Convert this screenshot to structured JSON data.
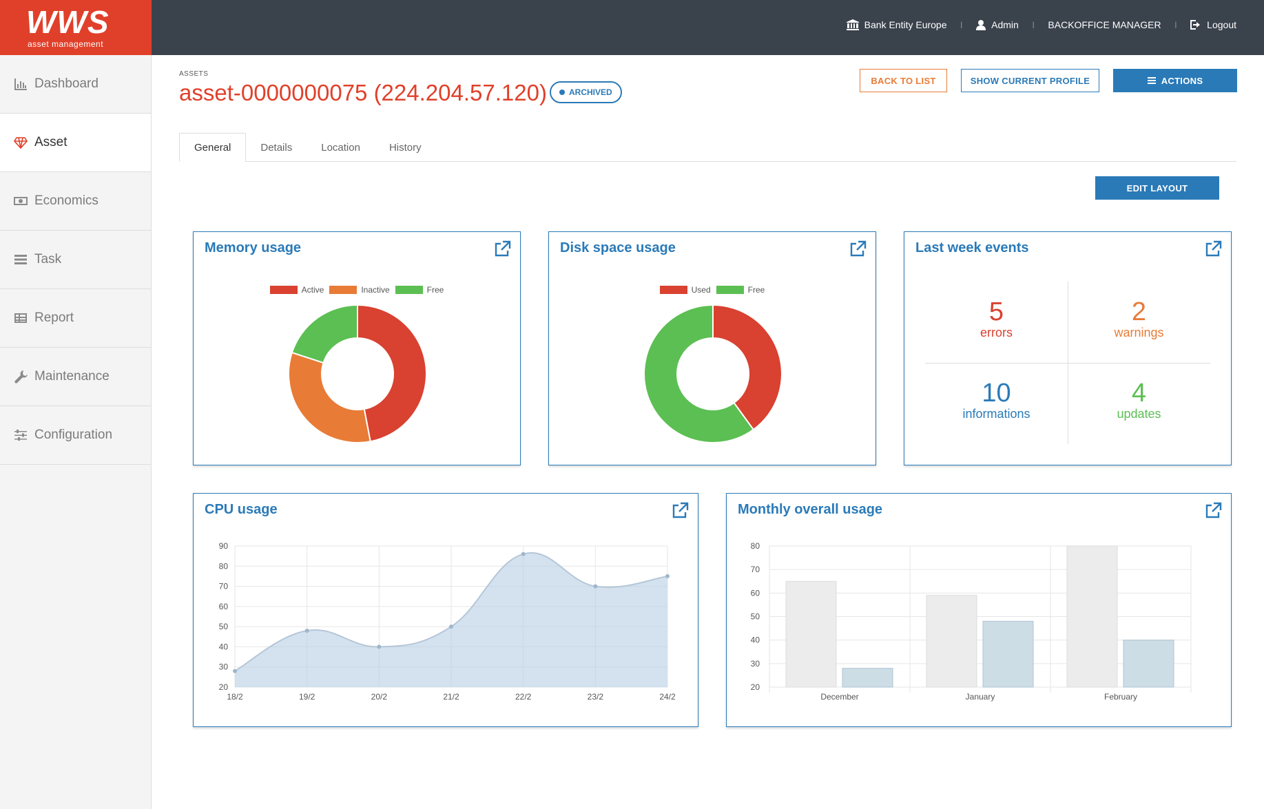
{
  "app": {
    "logo": "WWS",
    "logo_sub": "asset management"
  },
  "topnav": {
    "entity": "Bank Entity Europe",
    "user": "Admin",
    "role": "BACKOFFICE MANAGER",
    "logout": "Logout",
    "separator": "|"
  },
  "sidebar": {
    "items": [
      {
        "label": "Dashboard",
        "icon": "bar-chart-icon"
      },
      {
        "label": "Asset",
        "icon": "diamond-icon"
      },
      {
        "label": "Economics",
        "icon": "money-icon"
      },
      {
        "label": "Task",
        "icon": "tasks-icon"
      },
      {
        "label": "Report",
        "icon": "table-icon"
      },
      {
        "label": "Maintenance",
        "icon": "wrench-icon"
      },
      {
        "label": "Configuration",
        "icon": "sliders-icon"
      }
    ],
    "active": "Asset"
  },
  "header": {
    "breadcrumb": "ASSETS",
    "title": "asset-0000000075 (224.204.57.120)",
    "badge": "ARCHIVED"
  },
  "buttons": {
    "back": "BACK TO LIST",
    "profile": "SHOW CURRENT PROFILE",
    "actions": "ACTIONS",
    "edit_layout": "EDIT LAYOUT"
  },
  "tabs": [
    "General",
    "Details",
    "Location",
    "History"
  ],
  "active_tab": "General",
  "colors": {
    "brand": "#e0402a",
    "accent": "#2a7ab8",
    "orange": "#e87b36",
    "green": "#5cbf53",
    "red": "#d94130"
  },
  "cards": {
    "memory": {
      "title": "Memory usage"
    },
    "disk": {
      "title": "Disk space usage"
    },
    "events": {
      "title": "Last week events"
    },
    "cpu": {
      "title": "CPU usage"
    },
    "monthly": {
      "title": "Monthly overall usage"
    }
  },
  "events": [
    {
      "count": "5",
      "label": "errors",
      "color": "#d94130"
    },
    {
      "count": "2",
      "label": "warnings",
      "color": "#e87b36"
    },
    {
      "count": "10",
      "label": "informations",
      "color": "#2a7ab8"
    },
    {
      "count": "4",
      "label": "updates",
      "color": "#5cbf53"
    }
  ],
  "chart_data": [
    {
      "type": "pie",
      "title": "Memory usage",
      "categories": [
        "Active",
        "Inactive",
        "Free"
      ],
      "values": [
        47,
        33,
        20
      ],
      "colors": [
        "#d94130",
        "#e87b36",
        "#5cbf53"
      ],
      "legend": "top"
    },
    {
      "type": "pie",
      "title": "Disk space usage",
      "categories": [
        "Used",
        "Free"
      ],
      "values": [
        40,
        60
      ],
      "colors": [
        "#d94130",
        "#5cbf53"
      ],
      "legend": "top"
    },
    {
      "type": "area",
      "title": "CPU usage",
      "x": [
        "18/2",
        "19/2",
        "20/2",
        "21/2",
        "22/2",
        "23/2",
        "24/2"
      ],
      "values": [
        28,
        48,
        40,
        50,
        86,
        70,
        75
      ],
      "ylim": [
        20,
        90
      ],
      "yticks": [
        20,
        30,
        40,
        50,
        60,
        70,
        80,
        90
      ],
      "grid": true,
      "color": "#b8cfe6"
    },
    {
      "type": "bar",
      "title": "Monthly overall usage",
      "categories": [
        "December",
        "January",
        "February"
      ],
      "series": [
        {
          "values": [
            65,
            59,
            80
          ],
          "color": "#ececec"
        },
        {
          "values": [
            28,
            48,
            40
          ],
          "color": "#cddde6"
        }
      ],
      "ylim": [
        20,
        80
      ],
      "yticks": [
        20,
        30,
        40,
        50,
        60,
        70,
        80
      ],
      "grid": true
    }
  ]
}
